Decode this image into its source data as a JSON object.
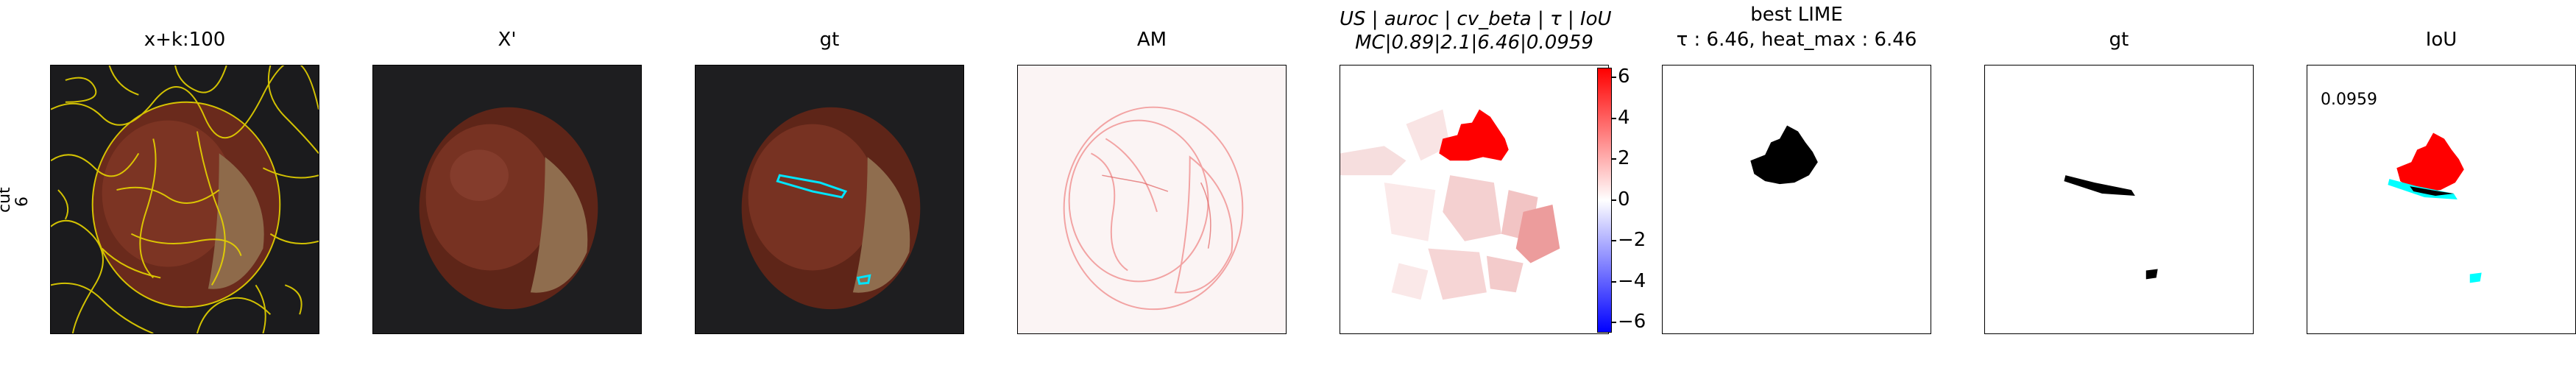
{
  "row_label": {
    "line1": "cut",
    "line2": "6"
  },
  "titles": {
    "p1": "x+k:100",
    "p2": "X'",
    "p3": "gt",
    "p4": "AM",
    "p5_line1": "US | auroc | cv_beta | τ | IoU",
    "p5_line2": "MC|0.89|2.1|6.46|0.0959",
    "p6_line1": "best LIME",
    "p6_line2": "τ : 6.46, heat_max : 6.46",
    "p7": "gt",
    "p8": "IoU"
  },
  "colorbar": {
    "ticks": [
      "6",
      "4",
      "2",
      "0",
      "−2",
      "−4",
      "−6"
    ],
    "min": -6.5,
    "max": 6.5
  },
  "iou_value": "0.0959",
  "colors": {
    "heat_pos": "#ff0000",
    "heat_neg": "#0000ff",
    "segments": "#ffff00",
    "gt_outline": "#00e5ff",
    "iou_gt": "#00ffff"
  }
}
